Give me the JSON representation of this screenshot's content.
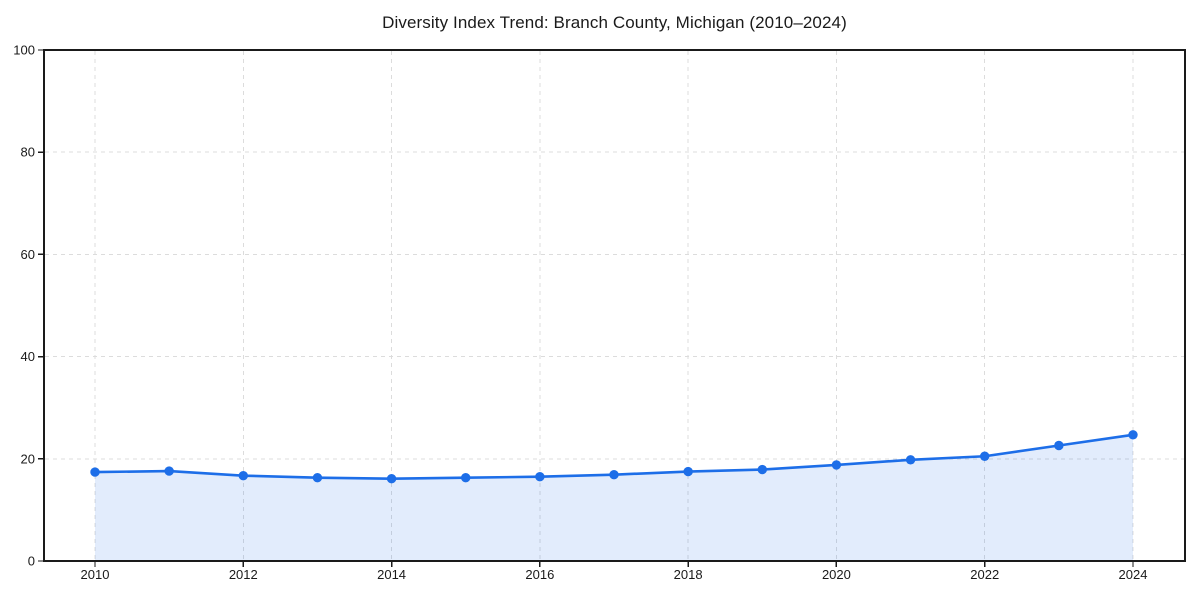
{
  "chart_data": {
    "type": "area",
    "title": "Diversity Index Trend: Branch County, Michigan (2010–2024)",
    "xlabel": "",
    "ylabel": "",
    "x": [
      2010,
      2011,
      2012,
      2013,
      2014,
      2015,
      2016,
      2017,
      2018,
      2019,
      2020,
      2021,
      2022,
      2023,
      2024
    ],
    "series": [
      {
        "name": "Diversity Index",
        "values": [
          17.4,
          17.6,
          16.7,
          16.3,
          16.1,
          16.3,
          16.5,
          16.9,
          17.5,
          17.9,
          18.8,
          19.8,
          20.5,
          22.6,
          24.7
        ]
      }
    ],
    "ylim": [
      0,
      100
    ],
    "yticks": [
      0,
      20,
      40,
      60,
      80,
      100
    ],
    "xticks": [
      2010,
      2012,
      2014,
      2016,
      2018,
      2020,
      2022,
      2024
    ],
    "grid": "dashed-both-axes",
    "legend_position": "none",
    "colors": {
      "line": "#1d6ee8",
      "marker": "#1d6ee8",
      "fill": "#1d6ee8",
      "fill_opacity": "0.13",
      "grid": "#dcdcdc",
      "spine": "#1a1a1a",
      "tick_text": "#1a1a1a",
      "background": "#ffffff"
    }
  }
}
